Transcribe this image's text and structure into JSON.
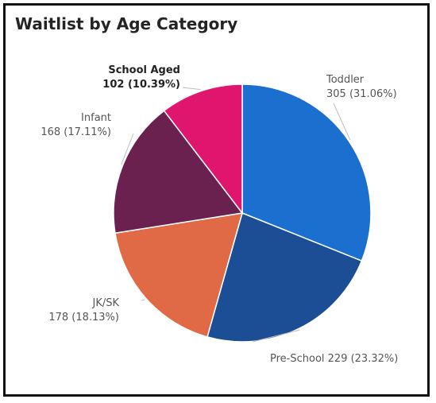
{
  "chart_data": {
    "type": "pie",
    "title": "Waitlist by Age Category",
    "slices": [
      {
        "label": "Toddler",
        "value": 305,
        "percent": "31.06%",
        "color": "#1a6fcf"
      },
      {
        "label": "Pre-School",
        "value": 229,
        "percent": "23.32%",
        "color": "#1c4e96"
      },
      {
        "label": "JK/SK",
        "value": 178,
        "percent": "18.13%",
        "color": "#e06a46"
      },
      {
        "label": "Infant",
        "value": 168,
        "percent": "17.11%",
        "color": "#6b2150"
      },
      {
        "label": "School Aged",
        "value": 102,
        "percent": "10.39%",
        "color": "#e0156e"
      }
    ],
    "labels": [
      {
        "name": "Toddler",
        "value_text": "305 (31.06%)"
      },
      {
        "name": "",
        "value_text": "Pre-School 229 (23.32%)"
      },
      {
        "name": "JK/SK",
        "value_text": "178 (18.13%)"
      },
      {
        "name": "Infant",
        "value_text": "168 (17.11%)"
      },
      {
        "name": "School Aged",
        "value_text": "102 (10.39%)"
      }
    ],
    "legend": "none",
    "label_placement": "outside"
  }
}
